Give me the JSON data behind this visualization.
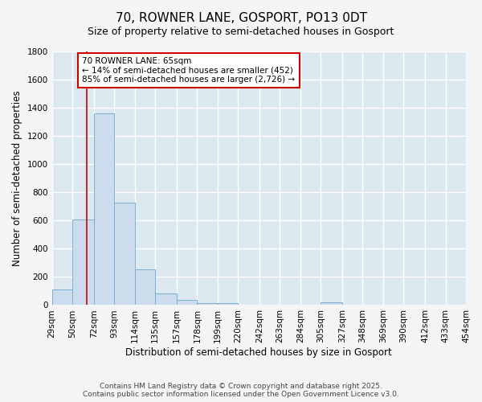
{
  "title": "70, ROWNER LANE, GOSPORT, PO13 0DT",
  "subtitle": "Size of property relative to semi-detached houses in Gosport",
  "xlabel": "Distribution of semi-detached houses by size in Gosport",
  "ylabel": "Number of semi-detached properties",
  "footer_line1": "Contains HM Land Registry data © Crown copyright and database right 2025.",
  "footer_line2": "Contains public sector information licensed under the Open Government Licence v3.0.",
  "bin_edges": [
    29,
    50,
    72,
    93,
    114,
    135,
    157,
    178,
    199,
    220,
    242,
    263,
    284,
    305,
    327,
    348,
    369,
    390,
    412,
    433,
    454
  ],
  "bar_heights": [
    113,
    610,
    1360,
    730,
    255,
    80,
    35,
    15,
    12,
    0,
    0,
    0,
    0,
    20,
    0,
    0,
    0,
    0,
    0,
    0
  ],
  "bar_color": "#ccdcec",
  "bar_edge_color": "#7ab0d4",
  "property_size": 65,
  "property_label": "70 ROWNER LANE: 65sqm",
  "pct_smaller": "14% of semi-detached houses are smaller (452)",
  "pct_larger": "85% of semi-detached houses are larger (2,726)",
  "annotation_box_color": "#ffffff",
  "annotation_box_edge_color": "#cc0000",
  "vline_color": "#cc0000",
  "ylim": [
    0,
    1800
  ],
  "yticks": [
    0,
    200,
    400,
    600,
    800,
    1000,
    1200,
    1400,
    1600,
    1800
  ],
  "bg_color": "#dce8f0",
  "grid_color": "#ffffff",
  "fig_bg_color": "#f5f5f5",
  "title_fontsize": 11,
  "subtitle_fontsize": 9,
  "tick_fontsize": 7.5,
  "label_fontsize": 8.5,
  "footer_fontsize": 6.5,
  "annot_fontsize": 7.5
}
